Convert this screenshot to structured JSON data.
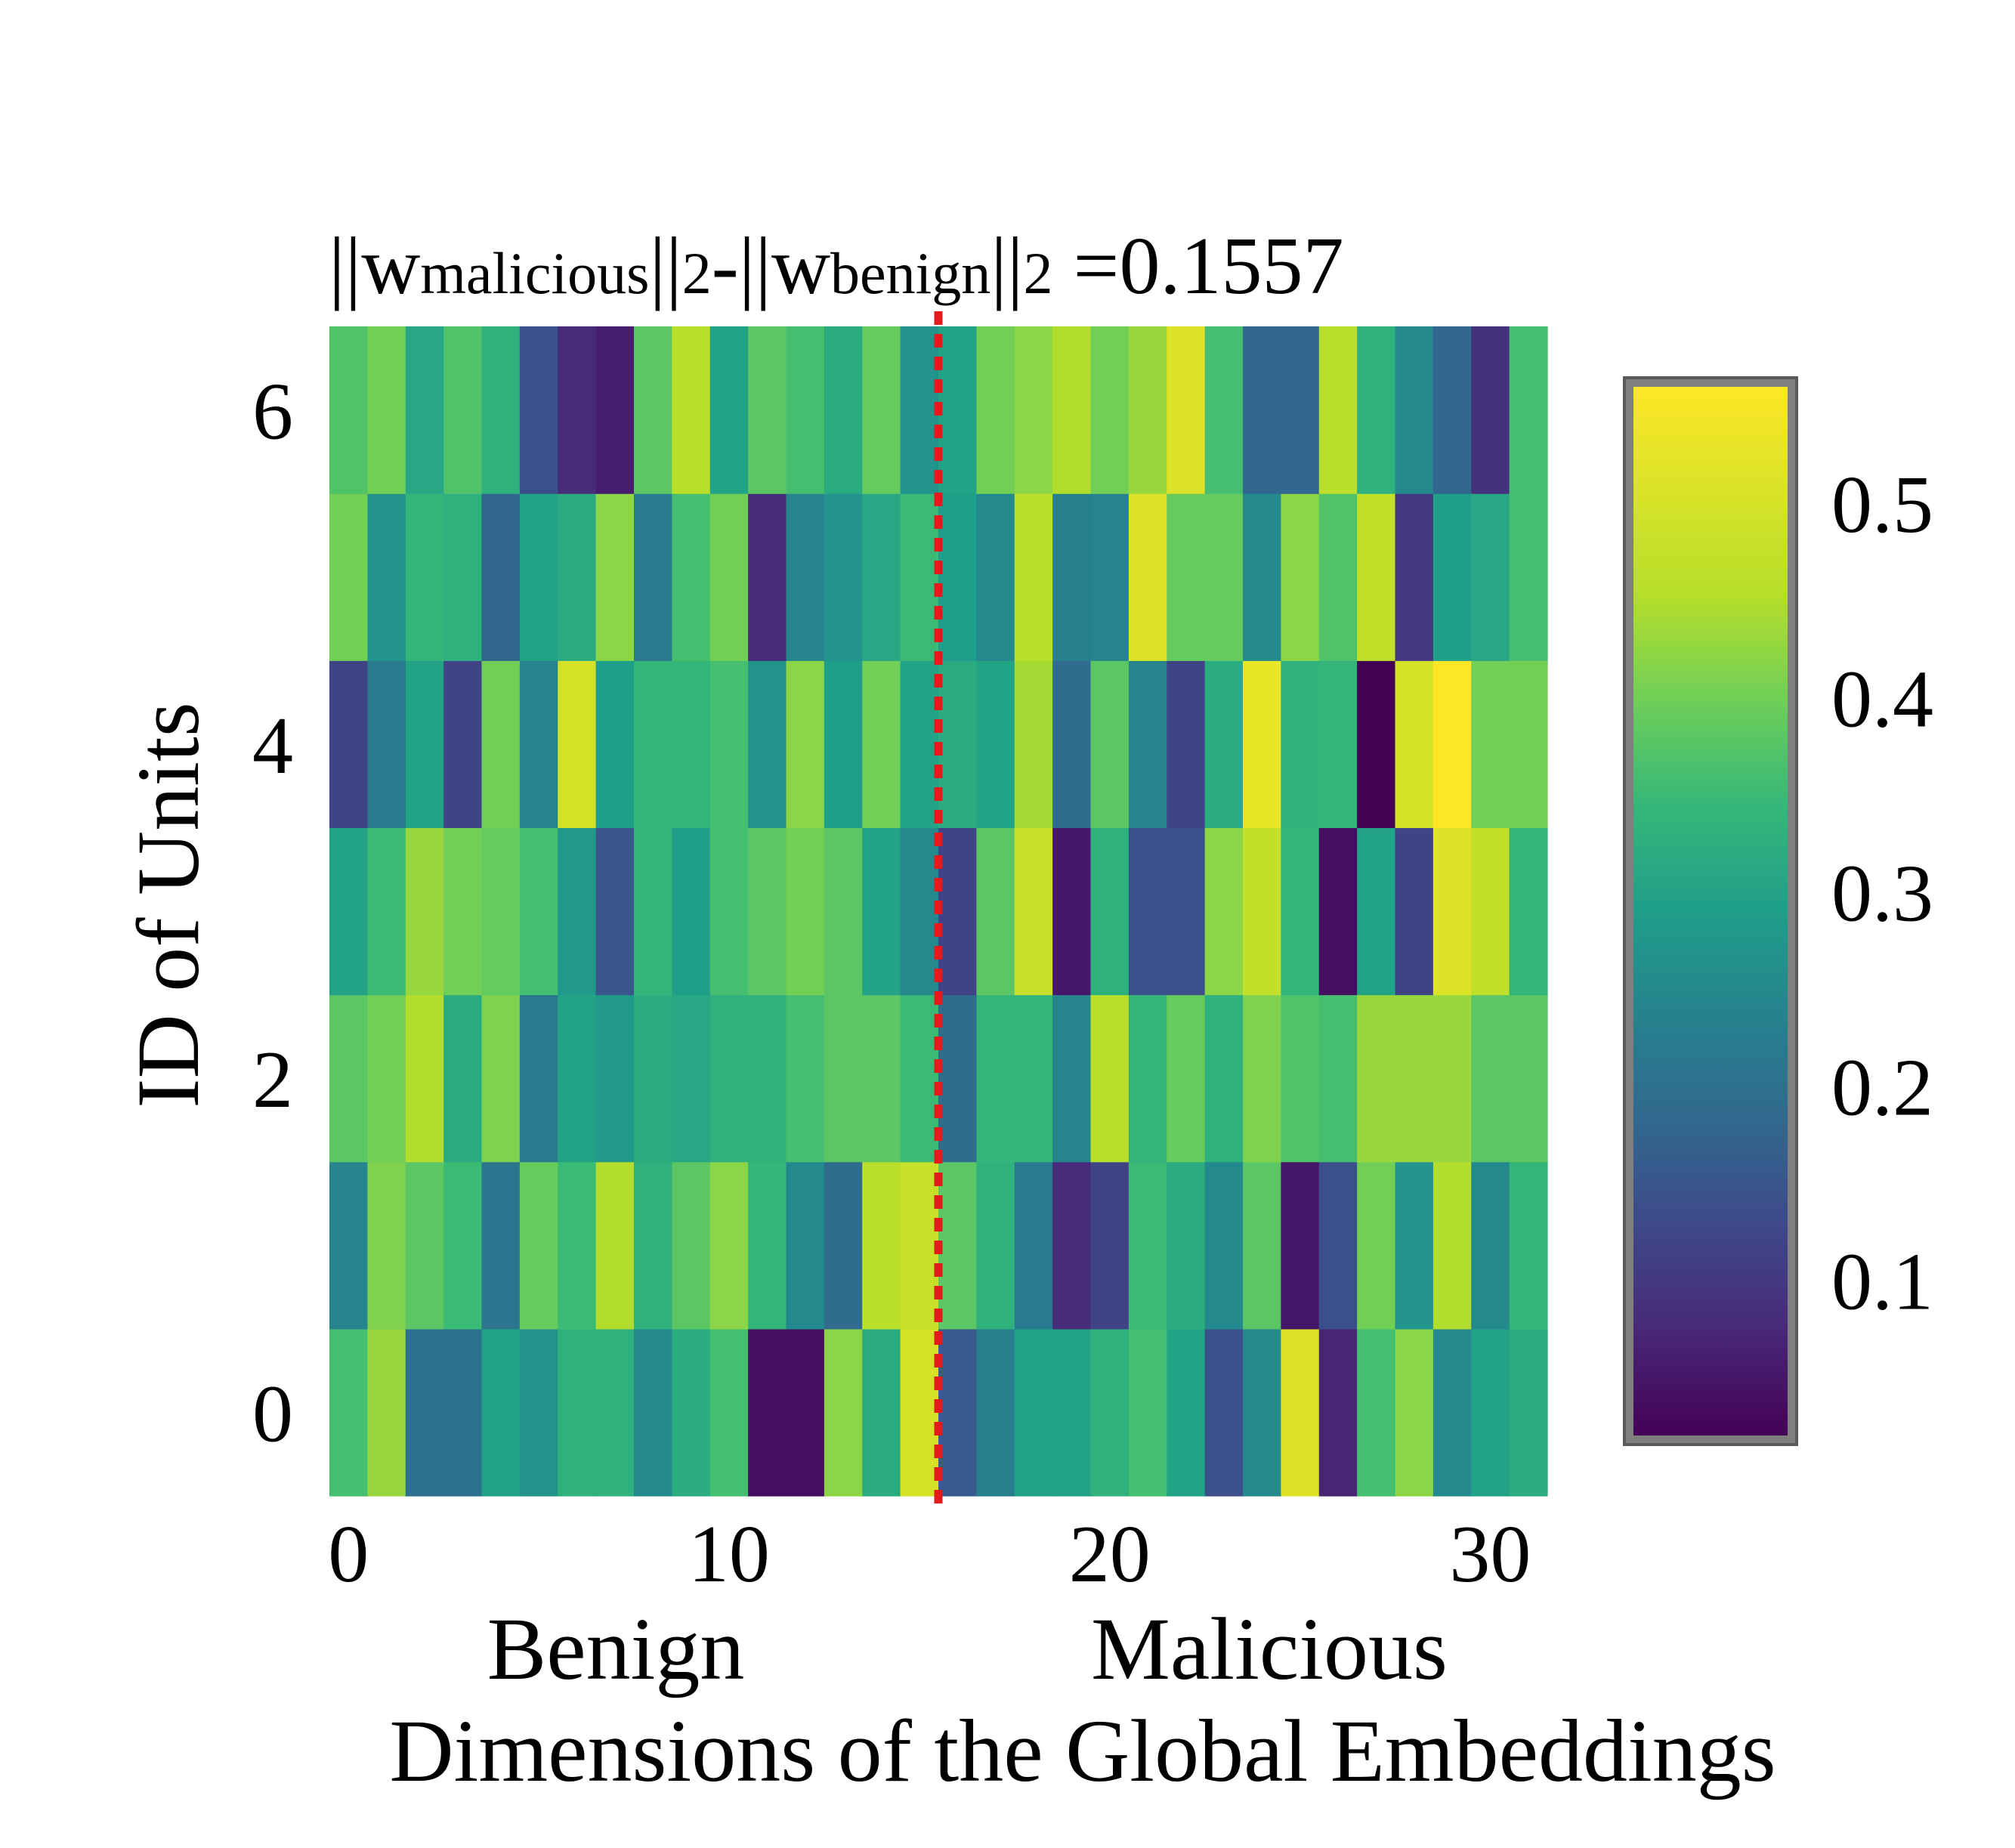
{
  "chart_data": {
    "type": "heatmap",
    "title": {
      "prefix": "||w",
      "sub1": "malicious",
      "mid": "||",
      "sub2": "2",
      "dash": "-||w",
      "sub3": "benign",
      "mid2": "||",
      "sub4": "2",
      "suffix": " =0.1557"
    },
    "ylabel": "ID of Units",
    "xlabel": "Dimensions of the Global Embeddings",
    "group_labels": [
      "Benign",
      "Malicious"
    ],
    "x_ticks": [
      "0",
      "10",
      "20",
      "30"
    ],
    "y_ticks": [
      "0",
      "2",
      "4",
      "6"
    ],
    "colorbar_ticks": [
      "0.1",
      "0.2",
      "0.3",
      "0.4",
      "0.5"
    ],
    "colorbar_tick_values": [
      0.1,
      0.2,
      0.3,
      0.4,
      0.5
    ],
    "color_range": [
      0.02,
      0.56
    ],
    "divider_x": 15.5,
    "n_cols": 32,
    "rows": [
      [
        0.36,
        0.43,
        0.2,
        0.2,
        0.3,
        0.27,
        0.33,
        0.33,
        0.25,
        0.32,
        0.36,
        0.04,
        0.04,
        0.42,
        0.32,
        0.5,
        0.16,
        0.23,
        0.3,
        0.3,
        0.33,
        0.36,
        0.3,
        0.14,
        0.25,
        0.51,
        0.07,
        0.36,
        0.42,
        0.25,
        0.3,
        0.32
      ],
      [
        0.24,
        0.41,
        0.38,
        0.35,
        0.21,
        0.39,
        0.35,
        0.45,
        0.33,
        0.38,
        0.42,
        0.34,
        0.25,
        0.19,
        0.46,
        0.48,
        0.38,
        0.33,
        0.22,
        0.08,
        0.12,
        0.35,
        0.32,
        0.25,
        0.38,
        0.05,
        0.14,
        0.4,
        0.27,
        0.45,
        0.25,
        0.34
      ],
      [
        0.38,
        0.4,
        0.45,
        0.32,
        0.41,
        0.22,
        0.3,
        0.28,
        0.32,
        0.31,
        0.33,
        0.33,
        0.36,
        0.38,
        0.38,
        0.35,
        0.19,
        0.34,
        0.34,
        0.24,
        0.46,
        0.34,
        0.39,
        0.33,
        0.41,
        0.37,
        0.36,
        0.43,
        0.43,
        0.43,
        0.38,
        0.38
      ],
      [
        0.3,
        0.35,
        0.43,
        0.4,
        0.39,
        0.36,
        0.28,
        0.15,
        0.34,
        0.29,
        0.36,
        0.38,
        0.4,
        0.38,
        0.3,
        0.25,
        0.12,
        0.38,
        0.48,
        0.05,
        0.33,
        0.14,
        0.14,
        0.42,
        0.47,
        0.34,
        0.04,
        0.3,
        0.12,
        0.51,
        0.47,
        0.34
      ],
      [
        0.12,
        0.22,
        0.3,
        0.12,
        0.4,
        0.24,
        0.5,
        0.29,
        0.34,
        0.34,
        0.36,
        0.27,
        0.42,
        0.29,
        0.4,
        0.3,
        0.32,
        0.3,
        0.44,
        0.19,
        0.38,
        0.24,
        0.12,
        0.32,
        0.53,
        0.33,
        0.34,
        0.02,
        0.5,
        0.56,
        0.4,
        0.4
      ],
      [
        0.4,
        0.27,
        0.34,
        0.33,
        0.18,
        0.3,
        0.32,
        0.42,
        0.22,
        0.36,
        0.4,
        0.08,
        0.24,
        0.27,
        0.31,
        0.35,
        0.29,
        0.25,
        0.46,
        0.23,
        0.24,
        0.51,
        0.39,
        0.39,
        0.25,
        0.42,
        0.37,
        0.47,
        0.1,
        0.29,
        0.31,
        0.36
      ],
      [
        0.37,
        0.4,
        0.31,
        0.37,
        0.33,
        0.14,
        0.08,
        0.06,
        0.38,
        0.46,
        0.3,
        0.38,
        0.36,
        0.32,
        0.39,
        0.27,
        0.3,
        0.4,
        0.42,
        0.45,
        0.4,
        0.43,
        0.51,
        0.36,
        0.18,
        0.18,
        0.46,
        0.33,
        0.25,
        0.18,
        0.09,
        0.36
      ]
    ]
  }
}
